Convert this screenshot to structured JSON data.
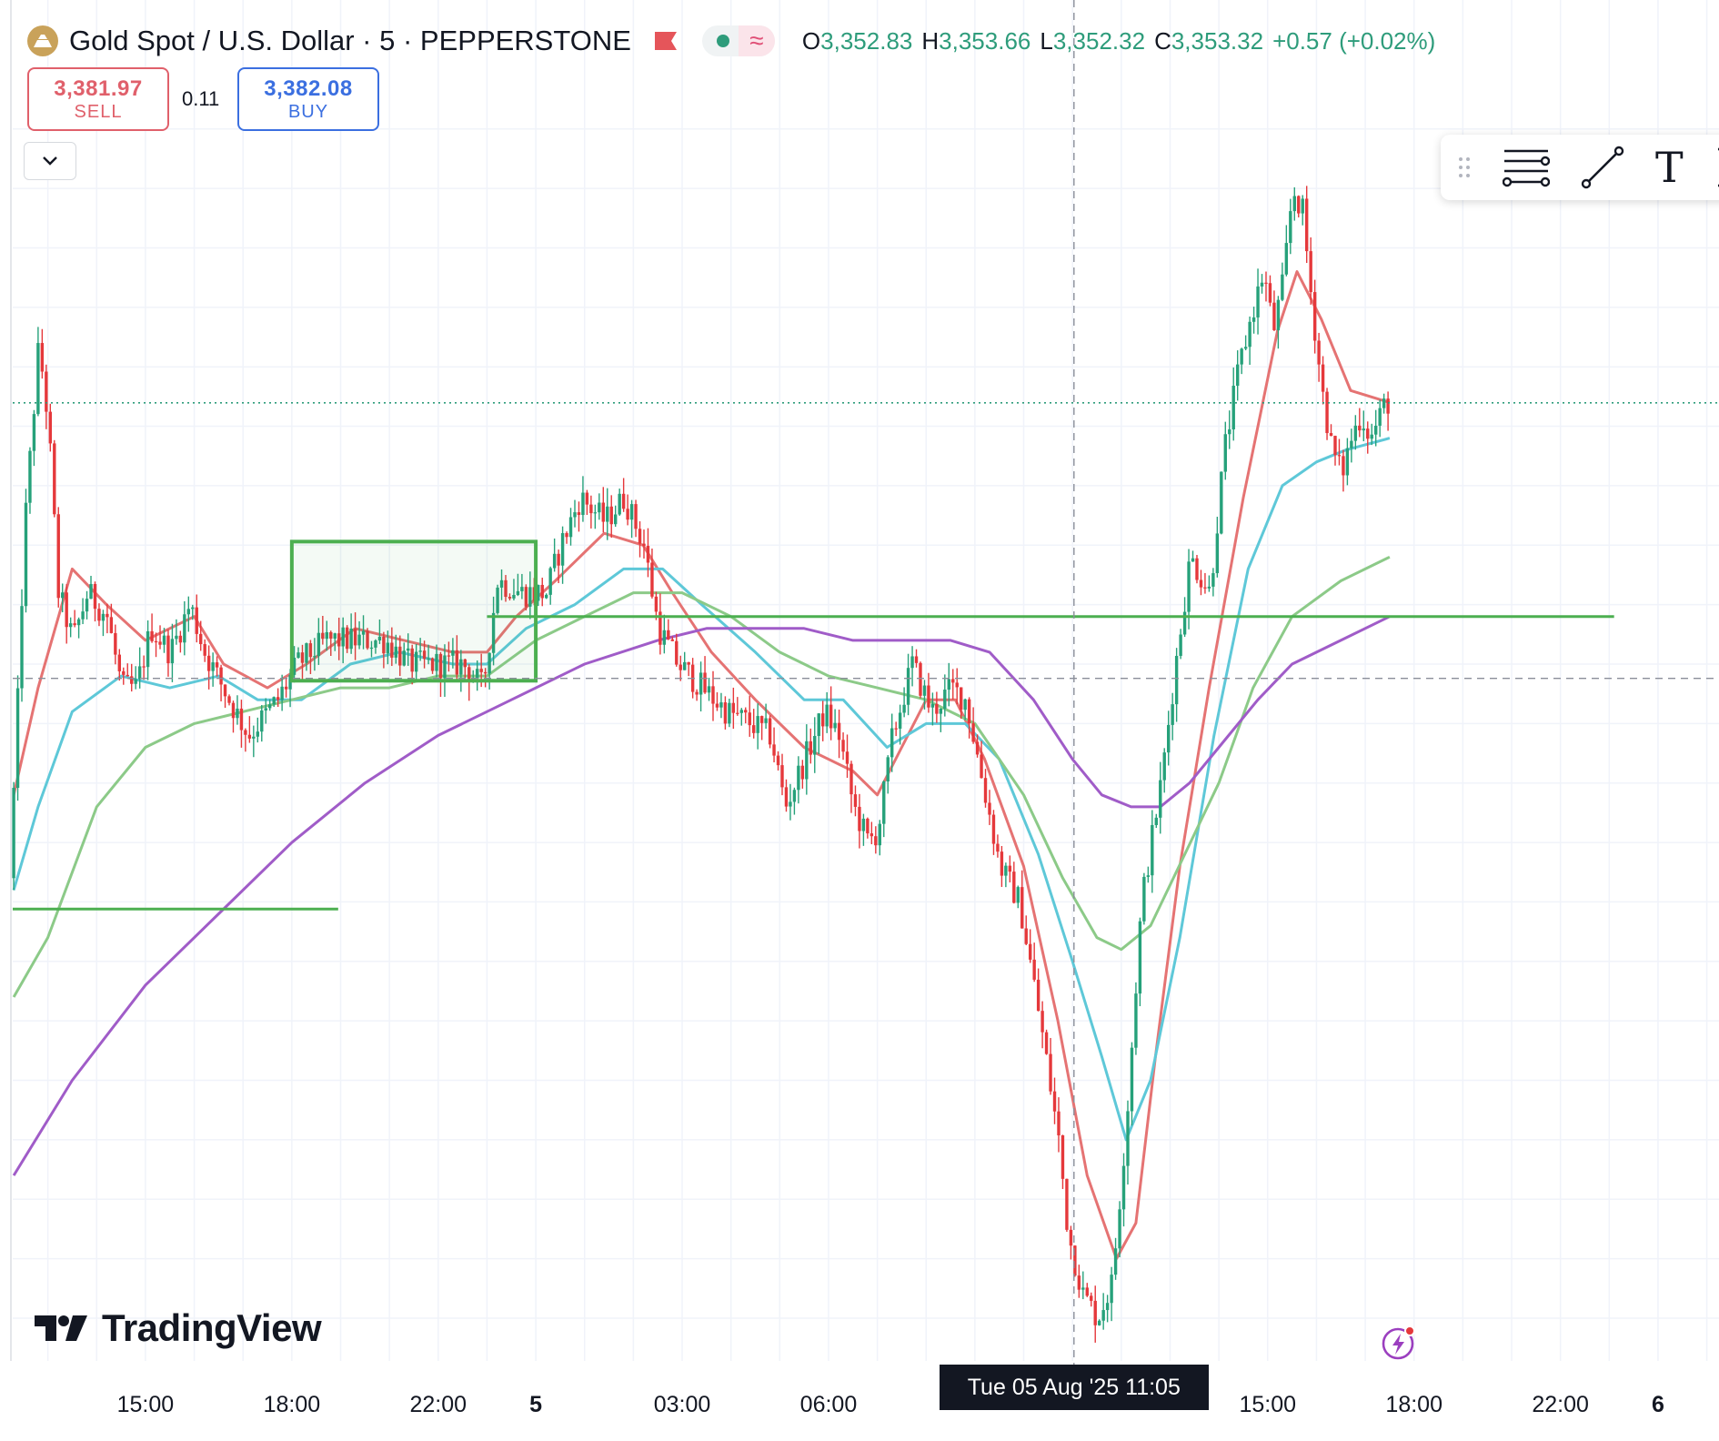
{
  "header": {
    "symbol": "Gold Spot / U.S. Dollar · 5 · PEPPERSTONE",
    "ohlc": [
      {
        "key": "O",
        "value": "3,352.83"
      },
      {
        "key": "H",
        "value": "3,353.66"
      },
      {
        "key": "L",
        "value": "3,352.32"
      },
      {
        "key": "C",
        "value": "3,353.32"
      }
    ],
    "change": "+0.57 (+0.02%)"
  },
  "trade": {
    "sell_price": "3,381.97",
    "sell_label": "SELL",
    "spread": "0.11",
    "buy_price": "3,382.08",
    "buy_label": "BUY"
  },
  "toolbar": {
    "icons": [
      "horizontal-lines-icon",
      "trend-line-icon",
      "text-tool-icon",
      "measure-icon"
    ],
    "text_tool": "T"
  },
  "branding": {
    "name": "TradingView"
  },
  "time_axis": {
    "crosshair_label": "Tue 05 Aug '25   11:05"
  },
  "colors": {
    "bull": "#26a17a",
    "bear": "#e5383b",
    "ma_red": "#e57373",
    "ma_cyan": "#5ec8d8",
    "ma_green": "#8cca88",
    "ma_purple": "#a05cc8",
    "drawing_green": "#4caf50",
    "dotted_level": "#2e9c7b"
  },
  "chart_data": {
    "type": "candlestick",
    "title": "Gold Spot / U.S. Dollar · 5 · PEPPERSTONE",
    "interval_minutes": 5,
    "xlabel": "",
    "ylabel": "",
    "x_ticks": [
      {
        "t": 2,
        "label": "15:00"
      },
      {
        "t": 5,
        "label": "18:00"
      },
      {
        "t": 8,
        "label": "22:00"
      },
      {
        "t": 10,
        "label": "5"
      },
      {
        "t": 13,
        "label": "03:00"
      },
      {
        "t": 16,
        "label": "06:00"
      },
      {
        "t": 25,
        "label": "15:00"
      },
      {
        "t": 28,
        "label": "18:00"
      },
      {
        "t": 31,
        "label": "22:00"
      },
      {
        "t": 33,
        "label": "6"
      }
    ],
    "x_range": [
      -0.72,
      34.25
    ],
    "y_range": [
      3301.4,
      3405.9
    ],
    "last_price": 3381.97,
    "crosshair": {
      "t": 21.03,
      "price": 3358.8
    },
    "anchors": [
      {
        "t": -0.7,
        "price": 3342.0
      },
      {
        "t": -0.55,
        "price": 3355.0
      },
      {
        "t": -0.4,
        "price": 3371.0
      },
      {
        "t": -0.1,
        "price": 3387.0
      },
      {
        "t": 0.1,
        "price": 3380.0
      },
      {
        "t": 0.3,
        "price": 3366.0
      },
      {
        "t": 0.6,
        "price": 3362.0
      },
      {
        "t": 0.9,
        "price": 3366.0
      },
      {
        "t": 1.3,
        "price": 3364.0
      },
      {
        "t": 1.6,
        "price": 3358.0
      },
      {
        "t": 1.9,
        "price": 3358.0
      },
      {
        "t": 2.2,
        "price": 3363.0
      },
      {
        "t": 2.6,
        "price": 3361.0
      },
      {
        "t": 3.0,
        "price": 3365.0
      },
      {
        "t": 3.3,
        "price": 3361.0
      },
      {
        "t": 3.8,
        "price": 3357.0
      },
      {
        "t": 4.2,
        "price": 3354.0
      },
      {
        "t": 4.8,
        "price": 3357.0
      },
      {
        "t": 5.2,
        "price": 3360.0
      },
      {
        "t": 5.8,
        "price": 3362.0
      },
      {
        "t": 6.4,
        "price": 3362.0
      },
      {
        "t": 7.0,
        "price": 3362.0
      },
      {
        "t": 7.5,
        "price": 3360.0
      },
      {
        "t": 8.0,
        "price": 3360.0
      },
      {
        "t": 8.6,
        "price": 3360.0
      },
      {
        "t": 9.0,
        "price": 3358.0
      },
      {
        "t": 9.3,
        "price": 3367.0
      },
      {
        "t": 9.8,
        "price": 3366.0
      },
      {
        "t": 10.3,
        "price": 3366.0
      },
      {
        "t": 10.6,
        "price": 3370.0
      },
      {
        "t": 11.0,
        "price": 3374.0
      },
      {
        "t": 11.5,
        "price": 3372.0
      },
      {
        "t": 11.9,
        "price": 3374.0
      },
      {
        "t": 12.3,
        "price": 3370.0
      },
      {
        "t": 12.6,
        "price": 3363.0
      },
      {
        "t": 13.0,
        "price": 3360.0
      },
      {
        "t": 13.5,
        "price": 3358.0
      },
      {
        "t": 14.0,
        "price": 3356.0
      },
      {
        "t": 14.5,
        "price": 3355.0
      },
      {
        "t": 14.9,
        "price": 3354.0
      },
      {
        "t": 15.2,
        "price": 3348.0
      },
      {
        "t": 15.5,
        "price": 3351.0
      },
      {
        "t": 16.0,
        "price": 3356.0
      },
      {
        "t": 16.3,
        "price": 3354.0
      },
      {
        "t": 16.6,
        "price": 3348.0
      },
      {
        "t": 16.9,
        "price": 3345.0
      },
      {
        "t": 17.1,
        "price": 3346.0
      },
      {
        "t": 17.4,
        "price": 3354.0
      },
      {
        "t": 17.8,
        "price": 3360.0
      },
      {
        "t": 18.2,
        "price": 3356.0
      },
      {
        "t": 18.6,
        "price": 3358.0
      },
      {
        "t": 18.9,
        "price": 3357.0
      },
      {
        "t": 19.3,
        "price": 3349.0
      },
      {
        "t": 19.6,
        "price": 3343.0
      },
      {
        "t": 20.0,
        "price": 3340.0
      },
      {
        "t": 20.3,
        "price": 3333.0
      },
      {
        "t": 20.5,
        "price": 3328.0
      },
      {
        "t": 20.8,
        "price": 3320.0
      },
      {
        "t": 21.0,
        "price": 3312.0
      },
      {
        "t": 21.3,
        "price": 3307.0
      },
      {
        "t": 21.6,
        "price": 3305.0
      },
      {
        "t": 21.9,
        "price": 3308.0
      },
      {
        "t": 22.2,
        "price": 3322.0
      },
      {
        "t": 22.5,
        "price": 3340.0
      },
      {
        "t": 22.9,
        "price": 3350.0
      },
      {
        "t": 23.2,
        "price": 3360.0
      },
      {
        "t": 23.5,
        "price": 3369.0
      },
      {
        "t": 23.9,
        "price": 3366.0
      },
      {
        "t": 24.2,
        "price": 3378.0
      },
      {
        "t": 24.5,
        "price": 3385.0
      },
      {
        "t": 24.8,
        "price": 3390.0
      },
      {
        "t": 25.0,
        "price": 3393.0
      },
      {
        "t": 25.2,
        "price": 3388.0
      },
      {
        "t": 25.4,
        "price": 3392.0
      },
      {
        "t": 25.6,
        "price": 3400.0
      },
      {
        "t": 25.8,
        "price": 3398.0
      },
      {
        "t": 26.0,
        "price": 3390.0
      },
      {
        "t": 26.2,
        "price": 3383.0
      },
      {
        "t": 26.4,
        "price": 3378.0
      },
      {
        "t": 26.6,
        "price": 3376.0
      },
      {
        "t": 26.8,
        "price": 3379.0
      },
      {
        "t": 27.0,
        "price": 3381.0
      },
      {
        "t": 27.2,
        "price": 3379.0
      },
      {
        "t": 27.5,
        "price": 3382.0
      }
    ],
    "series": [
      {
        "color": "#e57373",
        "points": [
          [
            -0.7,
            3349
          ],
          [
            -0.2,
            3358
          ],
          [
            0.5,
            3368
          ],
          [
            1.2,
            3365
          ],
          [
            2.0,
            3362
          ],
          [
            3.0,
            3364
          ],
          [
            3.6,
            3360
          ],
          [
            4.5,
            3358
          ],
          [
            5.3,
            3360
          ],
          [
            6.3,
            3363
          ],
          [
            7.3,
            3362
          ],
          [
            8.3,
            3361
          ],
          [
            9.0,
            3361
          ],
          [
            9.6,
            3364
          ],
          [
            10.4,
            3367
          ],
          [
            11.4,
            3371
          ],
          [
            12.2,
            3370
          ],
          [
            12.8,
            3366
          ],
          [
            13.6,
            3361
          ],
          [
            14.5,
            3357
          ],
          [
            15.5,
            3353
          ],
          [
            16.5,
            3351
          ],
          [
            17.0,
            3349
          ],
          [
            17.5,
            3353
          ],
          [
            18.0,
            3357
          ],
          [
            18.6,
            3357
          ],
          [
            19.2,
            3352
          ],
          [
            20.0,
            3343
          ],
          [
            20.7,
            3330
          ],
          [
            21.3,
            3317
          ],
          [
            21.9,
            3310
          ],
          [
            22.3,
            3313
          ],
          [
            22.7,
            3327
          ],
          [
            23.2,
            3343
          ],
          [
            23.8,
            3358
          ],
          [
            24.5,
            3374
          ],
          [
            25.2,
            3388
          ],
          [
            25.6,
            3393
          ],
          [
            26.1,
            3389
          ],
          [
            26.7,
            3383
          ],
          [
            27.5,
            3382
          ]
        ]
      },
      {
        "color": "#5ec8d8",
        "points": [
          [
            -0.7,
            3341
          ],
          [
            -0.2,
            3348
          ],
          [
            0.5,
            3356
          ],
          [
            1.5,
            3359
          ],
          [
            2.5,
            3358
          ],
          [
            3.5,
            3359
          ],
          [
            4.3,
            3357
          ],
          [
            5.2,
            3357
          ],
          [
            6.2,
            3360
          ],
          [
            7.2,
            3361
          ],
          [
            8.3,
            3360
          ],
          [
            9.0,
            3360
          ],
          [
            9.8,
            3363
          ],
          [
            10.8,
            3365
          ],
          [
            11.8,
            3368
          ],
          [
            12.6,
            3368
          ],
          [
            13.4,
            3365
          ],
          [
            14.5,
            3361
          ],
          [
            15.5,
            3357
          ],
          [
            16.3,
            3357
          ],
          [
            17.2,
            3353
          ],
          [
            18.0,
            3355
          ],
          [
            18.8,
            3355
          ],
          [
            19.5,
            3352
          ],
          [
            20.3,
            3344
          ],
          [
            21.0,
            3335
          ],
          [
            21.6,
            3327
          ],
          [
            22.1,
            3320
          ],
          [
            22.6,
            3325
          ],
          [
            23.2,
            3337
          ],
          [
            23.9,
            3354
          ],
          [
            24.6,
            3368
          ],
          [
            25.3,
            3375
          ],
          [
            26.0,
            3377
          ],
          [
            26.6,
            3378
          ],
          [
            27.5,
            3379
          ]
        ]
      },
      {
        "color": "#8cca88",
        "points": [
          [
            -0.7,
            3332
          ],
          [
            0.0,
            3337
          ],
          [
            1.0,
            3348
          ],
          [
            2.0,
            3353
          ],
          [
            3.0,
            3355
          ],
          [
            4.0,
            3356
          ],
          [
            5.0,
            3357
          ],
          [
            6.0,
            3358
          ],
          [
            7.0,
            3358
          ],
          [
            8.0,
            3359
          ],
          [
            9.0,
            3359
          ],
          [
            10.0,
            3362
          ],
          [
            11.0,
            3364
          ],
          [
            12.0,
            3366
          ],
          [
            13.0,
            3366
          ],
          [
            14.0,
            3364
          ],
          [
            15.0,
            3361
          ],
          [
            16.0,
            3359
          ],
          [
            17.0,
            3358
          ],
          [
            18.0,
            3357
          ],
          [
            19.0,
            3355
          ],
          [
            20.0,
            3349
          ],
          [
            20.8,
            3342
          ],
          [
            21.5,
            3337
          ],
          [
            22.0,
            3336
          ],
          [
            22.6,
            3338
          ],
          [
            23.3,
            3344
          ],
          [
            24.0,
            3350
          ],
          [
            24.7,
            3358
          ],
          [
            25.5,
            3364
          ],
          [
            26.5,
            3367
          ],
          [
            27.5,
            3369
          ]
        ]
      },
      {
        "color": "#a05cc8",
        "points": [
          [
            -0.7,
            3317
          ],
          [
            0.5,
            3325
          ],
          [
            2.0,
            3333
          ],
          [
            3.5,
            3339
          ],
          [
            5.0,
            3345
          ],
          [
            6.5,
            3350
          ],
          [
            8.0,
            3354
          ],
          [
            9.5,
            3357
          ],
          [
            11.0,
            3360
          ],
          [
            12.5,
            3362
          ],
          [
            13.5,
            3363
          ],
          [
            14.5,
            3363
          ],
          [
            15.5,
            3363
          ],
          [
            16.5,
            3362
          ],
          [
            17.5,
            3362
          ],
          [
            18.5,
            3362
          ],
          [
            19.3,
            3361
          ],
          [
            20.2,
            3357
          ],
          [
            21.0,
            3352
          ],
          [
            21.6,
            3349
          ],
          [
            22.2,
            3348
          ],
          [
            22.8,
            3348
          ],
          [
            23.4,
            3350
          ],
          [
            24.0,
            3353
          ],
          [
            24.8,
            3357
          ],
          [
            25.5,
            3360
          ],
          [
            26.5,
            3362
          ],
          [
            27.5,
            3364
          ]
        ]
      }
    ],
    "drawings": {
      "rectangle": {
        "t1": 5.0,
        "t2": 10.0,
        "p1": 3358.6,
        "p2": 3370.3
      },
      "hlines": [
        {
          "t1": -0.72,
          "t2": 5.95,
          "price": 3339.4
        },
        {
          "t1": 9.0,
          "t2": 32.1,
          "price": 3364.0
        }
      ],
      "crosshair_dashed_price": 3358.8,
      "crosshair_dashed_time": 21.03
    }
  }
}
